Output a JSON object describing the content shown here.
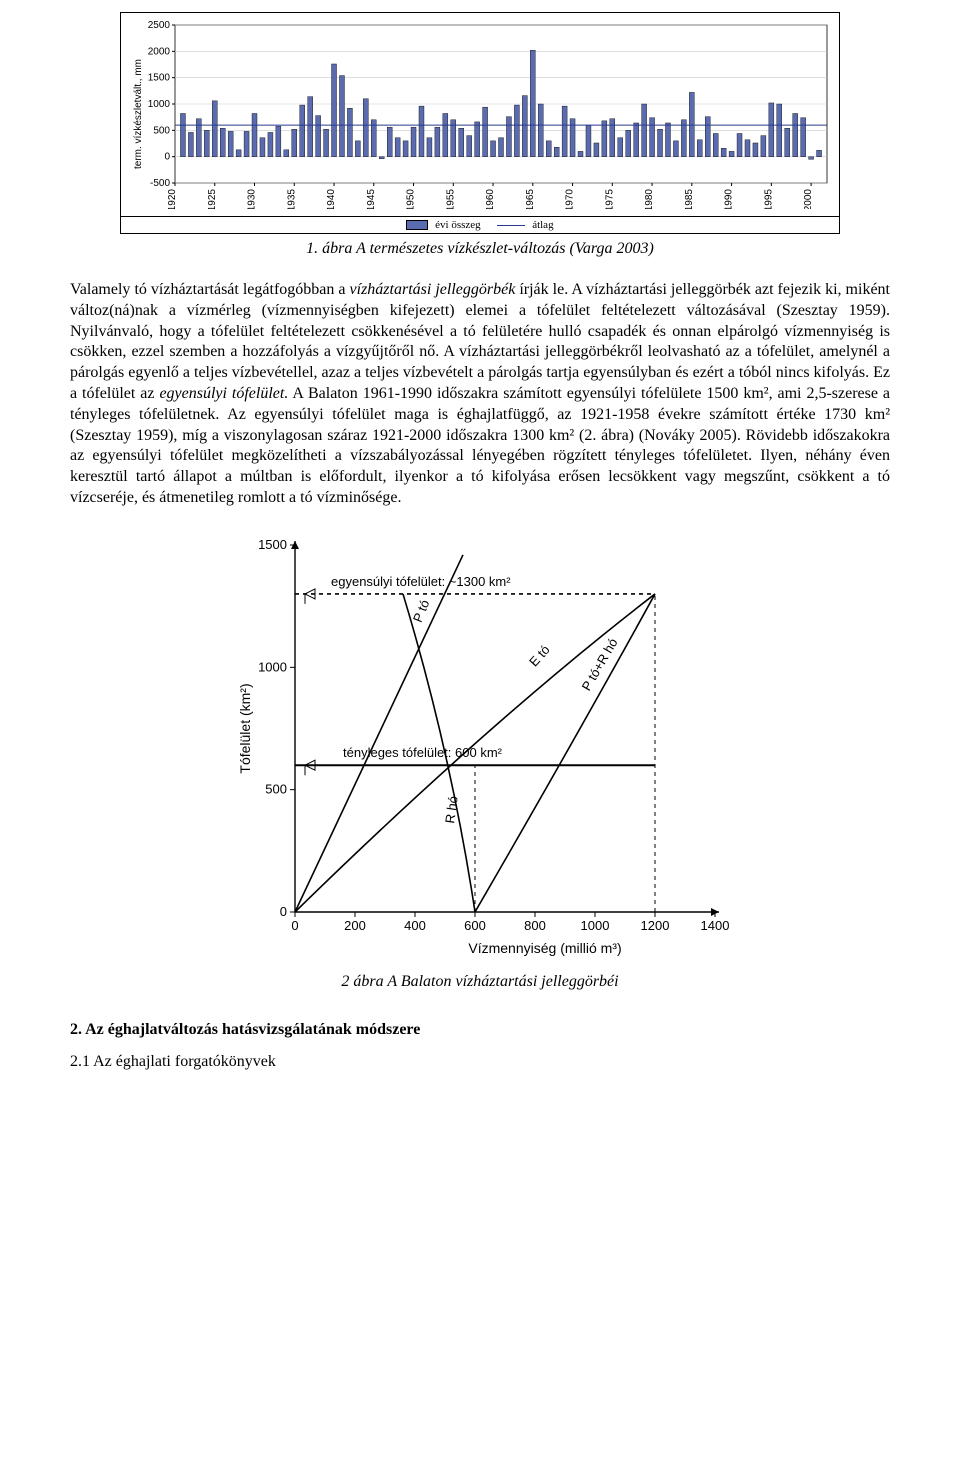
{
  "chart1": {
    "type": "bar",
    "y_axis_label": "term. vízkészletvált., mm",
    "y_ticks": [
      -500,
      0,
      500,
      1000,
      1500,
      2000,
      2500
    ],
    "x_ticks": [
      1920,
      1925,
      1930,
      1935,
      1940,
      1945,
      1950,
      1955,
      1960,
      1965,
      1970,
      1975,
      1980,
      1985,
      1990,
      1995,
      2000
    ],
    "legend": {
      "bar": "évi összeg",
      "line": "átlag"
    },
    "avg_line_value": 600,
    "bar_color": "#5b6bb0",
    "bar_border": "#000000",
    "line_color": "#2a3a8f",
    "grid_color": "#c9c9c9",
    "background": "#ffffff",
    "values_by_year": {
      "1921": 820,
      "1922": 460,
      "1923": 720,
      "1924": 500,
      "1925": 1060,
      "1926": 540,
      "1927": 480,
      "1928": 130,
      "1929": 480,
      "1930": 820,
      "1931": 360,
      "1932": 460,
      "1933": 580,
      "1934": 130,
      "1935": 520,
      "1936": 980,
      "1937": 1140,
      "1938": 780,
      "1939": 520,
      "1940": 1760,
      "1941": 1540,
      "1942": 920,
      "1943": 300,
      "1944": 1100,
      "1945": 700,
      "1946": -40,
      "1947": 560,
      "1948": 360,
      "1949": 300,
      "1950": 560,
      "1951": 960,
      "1952": 360,
      "1953": 560,
      "1954": 820,
      "1955": 700,
      "1956": 540,
      "1957": 400,
      "1958": 660,
      "1959": 940,
      "1960": 300,
      "1961": 360,
      "1962": 760,
      "1963": 980,
      "1964": 1160,
      "1965": 2020,
      "1966": 1000,
      "1967": 300,
      "1968": 180,
      "1969": 960,
      "1970": 720,
      "1971": 100,
      "1972": 600,
      "1973": 260,
      "1974": 680,
      "1975": 720,
      "1976": 360,
      "1977": 500,
      "1978": 640,
      "1979": 1000,
      "1980": 740,
      "1981": 520,
      "1982": 640,
      "1983": 300,
      "1984": 700,
      "1985": 1220,
      "1986": 320,
      "1987": 760,
      "1988": 440,
      "1989": 160,
      "1990": 100,
      "1991": 440,
      "1992": 320,
      "1993": 260,
      "1994": 400,
      "1995": 1020,
      "1996": 1000,
      "1997": 540,
      "1998": 820,
      "1999": 740,
      "2000": -50,
      "2001": 120
    }
  },
  "caption1": "1. ábra A természetes vízkészlet-változás (Varga 2003)",
  "paragraph": {
    "p1_a": "Valamely tó vízháztartását legátfogóbban a ",
    "p1_b": "vízháztartási jelleggörbék",
    "p1_c": " írják le. A vízháztartási jelleggörbék azt fejezik ki, miként változ(ná)nak a vízmérleg (vízmennyiségben kifejezett) elemei a tófelület feltételezett változásával (Szesztay 1959). Nyilvánvaló, hogy a tófelület feltételezett csökkenésével a tó felületére hulló csapadék és onnan elpárolgó vízmennyiség is csökken, ezzel szemben a hozzáfolyás a vízgyűjtőről nő. A vízháztartási jelleggörbékről leolvasható az a tófelület, amelynél a párolgás egyenlő a teljes vízbevétellel, azaz a teljes vízbevételt a párolgás tartja egyensúlyban és ezért a tóból nincs kifolyás. Ez a tófelület az ",
    "p1_d": "egyensúlyi tófelület.",
    "p1_e": " A Balaton 1961-1990 időszakra számított egyensúlyi tófelülete 1500 km², ami 2,5-szerese a tényleges tófelületnek. Az egyensúlyi tófelület maga is éghajlatfüggő, az 1921-1958 évekre számított értéke 1730 km² (Szesztay 1959), míg a viszonylagosan száraz 1921-2000 időszakra 1300 km² (2. ábra) (Nováky 2005). Rövidebb időszakokra az egyensúlyi tófelület megközelítheti a vízszabályozással lényegében rögzített tényleges tófelületet. Ilyen, néhány éven keresztül tartó állapot a múltban is előfordult, ilyenkor a tó kifolyása erősen lecsökkent vagy megszűnt, csökkent a tó vízcseréje, és átmenetileg romlott a tó vízminősége."
  },
  "chart2": {
    "type": "line-diagram",
    "x_label": "Vízmennyiség (millió m³)",
    "y_label": "Tófelület (km²)",
    "x_ticks": [
      0,
      200,
      400,
      600,
      800,
      1000,
      1200,
      1400
    ],
    "y_ticks": [
      0,
      500,
      1000,
      1500
    ],
    "text_eq": "egyensúlyi tófelület: ~1300 km²",
    "text_actual": "tényleges tófelület: 600 km²",
    "line_labels": {
      "p_to": "P_tó",
      "e_to": "E_tó",
      "rho": "R_hó",
      "sum": "P_tó+R_hó"
    },
    "eq_level": 1300,
    "actual_level": 600,
    "stroke": "#000000",
    "dash": "4,4",
    "background": "#ffffff"
  },
  "caption2": "2 ábra  A Balaton vízháztartási jelleggörbéi",
  "heading2": "2. Az éghajlatváltozás hatásvizsgálatának módszere",
  "heading3": "2.1 Az éghajlati forgatókönyvek"
}
